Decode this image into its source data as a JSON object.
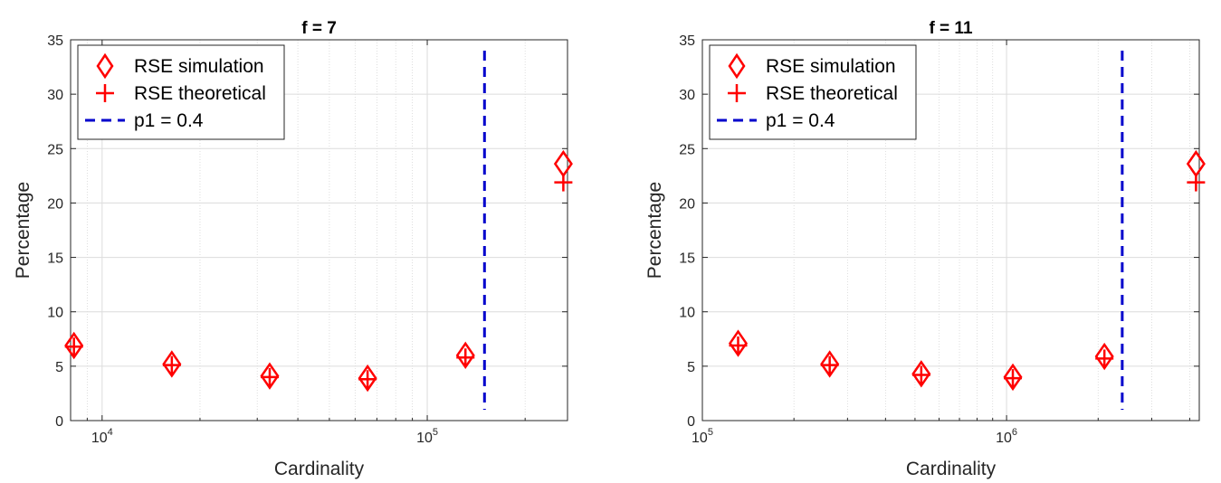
{
  "chart_data": [
    {
      "type": "scatter",
      "title": "f = 7",
      "xlabel": "Cardinality",
      "ylabel": "Percentage",
      "xscale": "log",
      "xlim": [
        8000,
        270000
      ],
      "ylim": [
        0,
        35
      ],
      "yticks": [
        0,
        5,
        10,
        15,
        20,
        25,
        30,
        35
      ],
      "xticks": [
        {
          "value": 10000,
          "base": "10",
          "exp": "4"
        },
        {
          "value": 100000,
          "base": "10",
          "exp": "5"
        }
      ],
      "grid": true,
      "legend": {
        "position": "top-left",
        "entries": [
          "RSE simulation",
          "RSE theoretical",
          "p1 = 0.4"
        ]
      },
      "series": [
        {
          "name": "RSE simulation",
          "marker": "diamond",
          "color": "#ff0000",
          "x": [
            8192,
            16384,
            32768,
            65536,
            131072,
            262144
          ],
          "y": [
            6.9,
            5.2,
            4.1,
            3.9,
            6.0,
            23.6
          ]
        },
        {
          "name": "RSE theoretical",
          "marker": "plus",
          "color": "#ff0000",
          "x": [
            8192,
            16384,
            32768,
            65536,
            131072,
            262144
          ],
          "y": [
            6.8,
            5.1,
            4.0,
            3.8,
            5.8,
            21.9
          ]
        }
      ],
      "vline": {
        "name": "p1 = 0.4",
        "x": 150000,
        "y_range": [
          1,
          34
        ],
        "color": "#0000cc",
        "style": "dashed"
      }
    },
    {
      "type": "scatter",
      "title": "f = 11",
      "xlabel": "Cardinality",
      "ylabel": "Percentage",
      "xscale": "log",
      "xlim": [
        100000,
        4300000
      ],
      "ylim": [
        0,
        35
      ],
      "yticks": [
        0,
        5,
        10,
        15,
        20,
        25,
        30,
        35
      ],
      "xticks": [
        {
          "value": 100000,
          "base": "10",
          "exp": "5"
        },
        {
          "value": 1000000,
          "base": "10",
          "exp": "6"
        }
      ],
      "grid": true,
      "legend": {
        "position": "top-left",
        "entries": [
          "RSE simulation",
          "RSE theoretical",
          "p1 = 0.4"
        ]
      },
      "series": [
        {
          "name": "RSE simulation",
          "marker": "diamond",
          "color": "#ff0000",
          "x": [
            131072,
            262144,
            524288,
            1048576,
            2097152,
            4194304
          ],
          "y": [
            7.1,
            5.2,
            4.3,
            4.0,
            5.9,
            23.6
          ]
        },
        {
          "name": "RSE theoretical",
          "marker": "plus",
          "color": "#ff0000",
          "x": [
            131072,
            262144,
            524288,
            1048576,
            2097152,
            4194304
          ],
          "y": [
            6.9,
            5.1,
            4.2,
            3.9,
            5.7,
            21.9
          ]
        }
      ],
      "vline": {
        "name": "p1 = 0.4",
        "x": 2400000,
        "y_range": [
          1,
          34
        ],
        "color": "#0000cc",
        "style": "dashed"
      }
    }
  ]
}
